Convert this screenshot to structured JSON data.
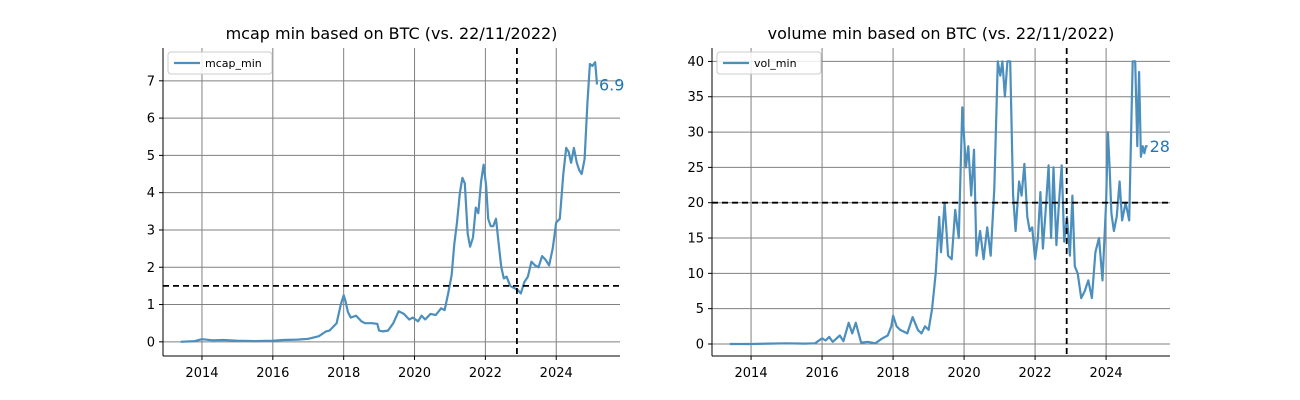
{
  "colors": {
    "series": "#4c8fbd",
    "end_label": "#1f77b4",
    "grid": "#808080",
    "reference_line": "#000000"
  },
  "chart_data": [
    {
      "type": "line",
      "title": "mcap min based on BTC (vs. 22/11/2022)",
      "xlabel": "",
      "ylabel": "",
      "xlim": [
        2012.9,
        2025.8
      ],
      "ylim": [
        -0.38,
        7.88
      ],
      "xticks": [
        2014,
        2016,
        2018,
        2020,
        2022,
        2024
      ],
      "yticks": [
        0,
        1,
        2,
        3,
        4,
        5,
        6,
        7
      ],
      "grid": true,
      "legend_position": "upper left",
      "reference_lines": {
        "vertical_x": 2022.89,
        "horizontal_y": 1.5
      },
      "end_label": "6.9",
      "series": [
        {
          "name": "mcap_min",
          "x": [
            2013.4,
            2013.8,
            2014.0,
            2014.3,
            2014.6,
            2015.0,
            2015.5,
            2016.0,
            2016.3,
            2016.7,
            2017.0,
            2017.3,
            2017.5,
            2017.6,
            2017.8,
            2017.92,
            2018.0,
            2018.05,
            2018.12,
            2018.2,
            2018.35,
            2018.5,
            2018.6,
            2018.8,
            2018.95,
            2019.0,
            2019.1,
            2019.25,
            2019.4,
            2019.55,
            2019.7,
            2019.85,
            2019.95,
            2020.1,
            2020.2,
            2020.3,
            2020.45,
            2020.6,
            2020.75,
            2020.85,
            2020.95,
            2021.05,
            2021.12,
            2021.2,
            2021.28,
            2021.35,
            2021.42,
            2021.5,
            2021.57,
            2021.65,
            2021.73,
            2021.8,
            2021.88,
            2021.95,
            2022.02,
            2022.08,
            2022.15,
            2022.22,
            2022.3,
            2022.38,
            2022.45,
            2022.52,
            2022.6,
            2022.7,
            2022.8,
            2022.9,
            2023.0,
            2023.1,
            2023.2,
            2023.3,
            2023.4,
            2023.5,
            2023.6,
            2023.7,
            2023.8,
            2023.9,
            2024.0,
            2024.1,
            2024.2,
            2024.28,
            2024.35,
            2024.42,
            2024.5,
            2024.58,
            2024.65,
            2024.72,
            2024.8,
            2024.88,
            2024.95,
            2025.02,
            2025.1,
            2025.15
          ],
          "values": [
            0.0,
            0.02,
            0.07,
            0.04,
            0.05,
            0.03,
            0.02,
            0.03,
            0.05,
            0.06,
            0.08,
            0.15,
            0.28,
            0.3,
            0.5,
            1.0,
            1.25,
            1.1,
            0.8,
            0.65,
            0.7,
            0.55,
            0.5,
            0.5,
            0.48,
            0.3,
            0.28,
            0.3,
            0.5,
            0.82,
            0.75,
            0.6,
            0.65,
            0.55,
            0.7,
            0.6,
            0.75,
            0.72,
            0.9,
            0.85,
            1.3,
            1.8,
            2.6,
            3.2,
            4.0,
            4.4,
            4.25,
            2.9,
            2.55,
            2.8,
            3.6,
            3.45,
            4.3,
            4.75,
            4.2,
            3.3,
            3.1,
            3.1,
            3.3,
            2.6,
            2.0,
            1.7,
            1.75,
            1.5,
            1.45,
            1.4,
            1.3,
            1.6,
            1.75,
            2.15,
            2.05,
            2.0,
            2.3,
            2.2,
            2.05,
            2.5,
            3.2,
            3.3,
            4.5,
            5.2,
            5.1,
            4.8,
            5.2,
            4.8,
            4.6,
            4.5,
            4.9,
            6.4,
            7.45,
            7.4,
            7.5,
            6.9
          ]
        }
      ]
    },
    {
      "type": "line",
      "title": "volume min based on BTC (vs. 22/11/2022)",
      "xlabel": "",
      "ylabel": "",
      "xlim": [
        2012.9,
        2025.8
      ],
      "ylim": [
        -1.7,
        41.9
      ],
      "xticks": [
        2014,
        2016,
        2018,
        2020,
        2022,
        2024
      ],
      "yticks": [
        0,
        5,
        10,
        15,
        20,
        25,
        30,
        35,
        40
      ],
      "grid": true,
      "legend_position": "upper left",
      "reference_lines": {
        "vertical_x": 2022.89,
        "horizontal_y": 20
      },
      "end_label": "28",
      "series": [
        {
          "name": "vol_min",
          "x": [
            2013.4,
            2014.0,
            2014.5,
            2015.0,
            2015.5,
            2015.8,
            2016.0,
            2016.1,
            2016.2,
            2016.3,
            2016.5,
            2016.6,
            2016.75,
            2016.85,
            2016.95,
            2017.1,
            2017.3,
            2017.5,
            2017.7,
            2017.85,
            2017.95,
            2018.0,
            2018.1,
            2018.2,
            2018.4,
            2018.55,
            2018.7,
            2018.8,
            2018.9,
            2019.0,
            2019.1,
            2019.2,
            2019.3,
            2019.35,
            2019.45,
            2019.55,
            2019.65,
            2019.75,
            2019.85,
            2019.95,
            2020.05,
            2020.12,
            2020.2,
            2020.28,
            2020.35,
            2020.45,
            2020.55,
            2020.65,
            2020.75,
            2020.85,
            2020.95,
            2021.02,
            2021.08,
            2021.15,
            2021.22,
            2021.3,
            2021.38,
            2021.45,
            2021.55,
            2021.62,
            2021.7,
            2021.78,
            2021.85,
            2021.92,
            2022.0,
            2022.08,
            2022.15,
            2022.22,
            2022.3,
            2022.38,
            2022.45,
            2022.52,
            2022.6,
            2022.68,
            2022.75,
            2022.82,
            2022.9,
            2022.98,
            2023.05,
            2023.12,
            2023.2,
            2023.3,
            2023.4,
            2023.5,
            2023.6,
            2023.7,
            2023.8,
            2023.9,
            2024.0,
            2024.05,
            2024.1,
            2024.15,
            2024.22,
            2024.3,
            2024.38,
            2024.45,
            2024.55,
            2024.65,
            2024.75,
            2024.82,
            2024.88,
            2024.93,
            2024.98,
            2025.03,
            2025.08,
            2025.12,
            2025.17
          ],
          "values": [
            0.0,
            0.0,
            0.05,
            0.1,
            0.05,
            0.1,
            0.8,
            0.5,
            1.0,
            0.3,
            1.2,
            0.4,
            3.0,
            1.5,
            3.0,
            0.2,
            0.3,
            0.1,
            0.8,
            1.2,
            2.5,
            4.0,
            2.5,
            2.0,
            1.5,
            3.8,
            2.0,
            1.5,
            2.5,
            2.0,
            5.0,
            10.0,
            18.0,
            13.0,
            20.0,
            12.5,
            12.0,
            19.0,
            15.0,
            33.5,
            25.0,
            28.0,
            21.0,
            27.5,
            12.5,
            16.0,
            12.0,
            16.5,
            12.5,
            22.0,
            40.0,
            38.0,
            40.0,
            35.0,
            40.0,
            40.0,
            21.0,
            16.0,
            23.0,
            21.0,
            25.5,
            18.0,
            16.0,
            16.5,
            12.0,
            15.0,
            21.5,
            13.5,
            19.0,
            25.3,
            15.0,
            25.0,
            14.0,
            20.5,
            25.3,
            14.5,
            18.0,
            12.5,
            21.0,
            11.0,
            10.0,
            6.5,
            7.5,
            9.0,
            6.5,
            13.0,
            15.0,
            9.0,
            20.0,
            30.0,
            25.0,
            18.5,
            16.0,
            18.0,
            23.0,
            17.5,
            20.0,
            17.5,
            40.0,
            40.0,
            28.0,
            38.5,
            26.5,
            28.0,
            27.0,
            28.0,
            28.0
          ]
        }
      ]
    }
  ]
}
